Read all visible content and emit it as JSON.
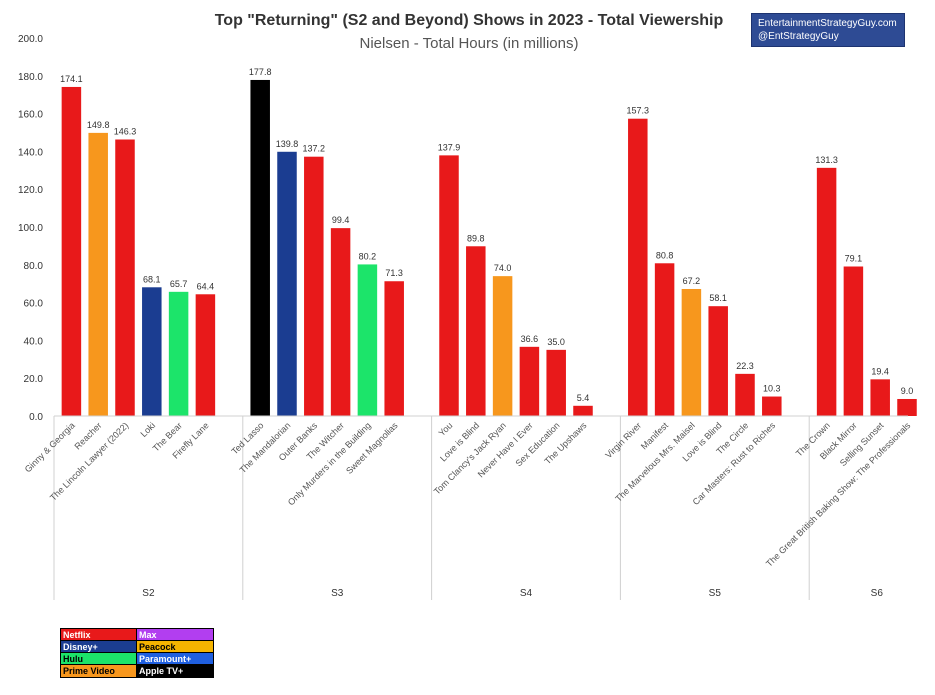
{
  "title": "Top \"Returning\" (S2 and Beyond) Shows in 2023 - Total Viewership",
  "subtitle": "Nielsen - Total Hours (in millions)",
  "credit": {
    "line1": "EntertainmentStrategyGuy.com",
    "line2": "@EntStrategyGuy"
  },
  "legend": [
    {
      "label": "Netflix",
      "color": "#e8191a",
      "text_color": "#ffffff"
    },
    {
      "label": "Max",
      "color": "#b23ef0",
      "text_color": "#ffffff"
    },
    {
      "label": "Disney+",
      "color": "#1b3d91",
      "text_color": "#ffffff"
    },
    {
      "label": "Peacock",
      "color": "#f5b400",
      "text_color": "#000000"
    },
    {
      "label": "Hulu",
      "color": "#1ce46a",
      "text_color": "#000000"
    },
    {
      "label": "Paramount+",
      "color": "#1f5fe0",
      "text_color": "#ffffff"
    },
    {
      "label": "Prime Video",
      "color": "#f7971d",
      "text_color": "#000000"
    },
    {
      "label": "Apple TV+",
      "color": "#000000",
      "text_color": "#ffffff"
    }
  ],
  "chart_data": {
    "type": "bar",
    "title": "Top \"Returning\" (S2 and Beyond) Shows in 2023 - Total Viewership",
    "subtitle": "Nielsen - Total Hours (in millions)",
    "ylim": [
      0,
      200
    ],
    "yticks": [
      "0.0",
      "20.0",
      "40.0",
      "60.0",
      "80.0",
      "100.0",
      "120.0",
      "140.0",
      "160.0",
      "180.0",
      "200.0"
    ],
    "grid": false,
    "groups": [
      {
        "name": "S2",
        "bars": [
          {
            "label": "Ginny & Georgia",
            "value": 174.1,
            "value_label": "174.1",
            "service": "Netflix",
            "color": "#e8191a"
          },
          {
            "label": "Reacher",
            "value": 149.8,
            "value_label": "149.8",
            "service": "Prime Video",
            "color": "#f7971d"
          },
          {
            "label": "The Lincoln Lawyer (2022)",
            "value": 146.3,
            "value_label": "146.3",
            "service": "Netflix",
            "color": "#e8191a"
          },
          {
            "label": "Loki",
            "value": 68.1,
            "value_label": "68.1",
            "service": "Disney+",
            "color": "#1b3d91"
          },
          {
            "label": "The Bear",
            "value": 65.7,
            "value_label": "65.7",
            "service": "Hulu",
            "color": "#1ce46a"
          },
          {
            "label": "Firefly Lane",
            "value": 64.4,
            "value_label": "64.4",
            "service": "Netflix",
            "color": "#e8191a"
          }
        ]
      },
      {
        "name": "S3",
        "bars": [
          {
            "label": "Ted Lasso",
            "value": 177.8,
            "value_label": "177.8",
            "service": "Apple TV+",
            "color": "#000000"
          },
          {
            "label": "The Mandalorian",
            "value": 139.8,
            "value_label": "139.8",
            "service": "Disney+",
            "color": "#1b3d91"
          },
          {
            "label": "Outer Banks",
            "value": 137.2,
            "value_label": "137.2",
            "service": "Netflix",
            "color": "#e8191a"
          },
          {
            "label": "The Witcher",
            "value": 99.4,
            "value_label": "99.4",
            "service": "Netflix",
            "color": "#e8191a"
          },
          {
            "label": "Only Murders in the Building",
            "value": 80.2,
            "value_label": "80.2",
            "service": "Hulu",
            "color": "#1ce46a"
          },
          {
            "label": "Sweet Magnolias",
            "value": 71.3,
            "value_label": "71.3",
            "service": "Netflix",
            "color": "#e8191a"
          }
        ]
      },
      {
        "name": "S4",
        "bars": [
          {
            "label": "You",
            "value": 137.9,
            "value_label": "137.9",
            "service": "Netflix",
            "color": "#e8191a"
          },
          {
            "label": "Love is Blind",
            "value": 89.8,
            "value_label": "89.8",
            "service": "Netflix",
            "color": "#e8191a"
          },
          {
            "label": "Tom Clancy's Jack Ryan",
            "value": 74.0,
            "value_label": "74.0",
            "service": "Prime Video",
            "color": "#f7971d"
          },
          {
            "label": "Never Have I Ever",
            "value": 36.6,
            "value_label": "36.6",
            "service": "Netflix",
            "color": "#e8191a"
          },
          {
            "label": "Sex Education",
            "value": 35.0,
            "value_label": "35.0",
            "service": "Netflix",
            "color": "#e8191a"
          },
          {
            "label": "The Upshaws",
            "value": 5.4,
            "value_label": "5.4",
            "service": "Netflix",
            "color": "#e8191a"
          }
        ]
      },
      {
        "name": "S5",
        "bars": [
          {
            "label": "Virgin River",
            "value": 157.3,
            "value_label": "157.3",
            "service": "Netflix",
            "color": "#e8191a"
          },
          {
            "label": "Manifest",
            "value": 80.8,
            "value_label": "80.8",
            "service": "Netflix",
            "color": "#e8191a"
          },
          {
            "label": "The Marvelous Mrs. Maisel",
            "value": 67.2,
            "value_label": "67.2",
            "service": "Prime Video",
            "color": "#f7971d"
          },
          {
            "label": "Love is Blind",
            "value": 58.1,
            "value_label": "58.1",
            "service": "Netflix",
            "color": "#e8191a"
          },
          {
            "label": "The Circle",
            "value": 22.3,
            "value_label": "22.3",
            "service": "Netflix",
            "color": "#e8191a"
          },
          {
            "label": "Car Masters: Rust to Riches",
            "value": 10.3,
            "value_label": "10.3",
            "service": "Netflix",
            "color": "#e8191a"
          }
        ]
      },
      {
        "name": "S6",
        "bars": [
          {
            "label": "The Crown",
            "value": 131.3,
            "value_label": "131.3",
            "service": "Netflix",
            "color": "#e8191a"
          },
          {
            "label": "Black Mirror",
            "value": 79.1,
            "value_label": "79.1",
            "service": "Netflix",
            "color": "#e8191a"
          },
          {
            "label": "Selling Sunset",
            "value": 19.4,
            "value_label": "19.4",
            "service": "Netflix",
            "color": "#e8191a"
          },
          {
            "label": "The Great British Baking Show: The Professionals",
            "value": 9.0,
            "value_label": "9.0",
            "service": "Netflix",
            "color": "#e8191a"
          }
        ]
      }
    ]
  }
}
